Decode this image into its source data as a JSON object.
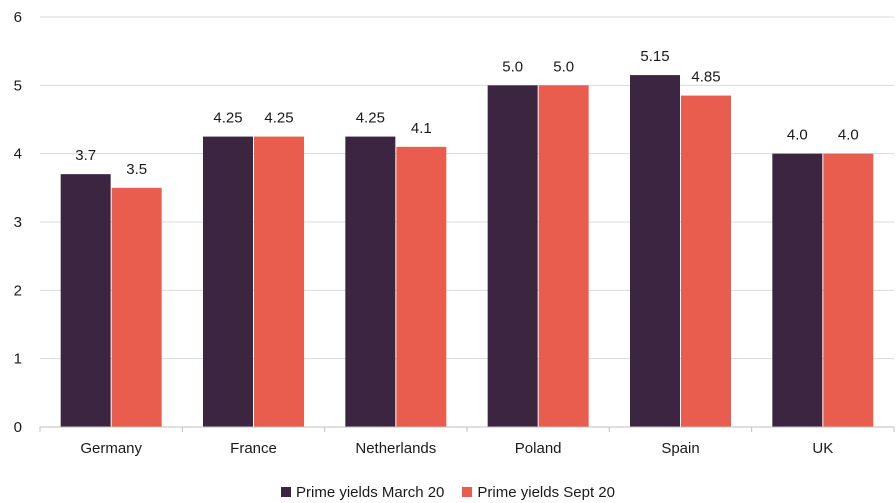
{
  "chart_data": {
    "type": "bar",
    "categories": [
      "Germany",
      "France",
      "Netherlands",
      "Poland",
      "Spain",
      "UK"
    ],
    "series": [
      {
        "name": "Prime yields March 20",
        "values": [
          3.7,
          4.25,
          4.25,
          5.0,
          5.15,
          4.0
        ],
        "labels": [
          "3.7",
          "4.25",
          "4.25",
          "5.0",
          "5.15",
          "4.0"
        ],
        "color": "#3b2540"
      },
      {
        "name": "Prime yields Sept 20",
        "values": [
          3.5,
          4.25,
          4.1,
          5.0,
          4.85,
          4.0
        ],
        "labels": [
          "3.5",
          "4.25",
          "4.1",
          "5.0",
          "4.85",
          "4.0"
        ],
        "color": "#e85d4e"
      }
    ],
    "yticks": [
      "0",
      "1",
      "2",
      "3",
      "4",
      "5",
      "6"
    ],
    "ylim": [
      0,
      6
    ],
    "grid": true,
    "legend_position": "bottom"
  }
}
